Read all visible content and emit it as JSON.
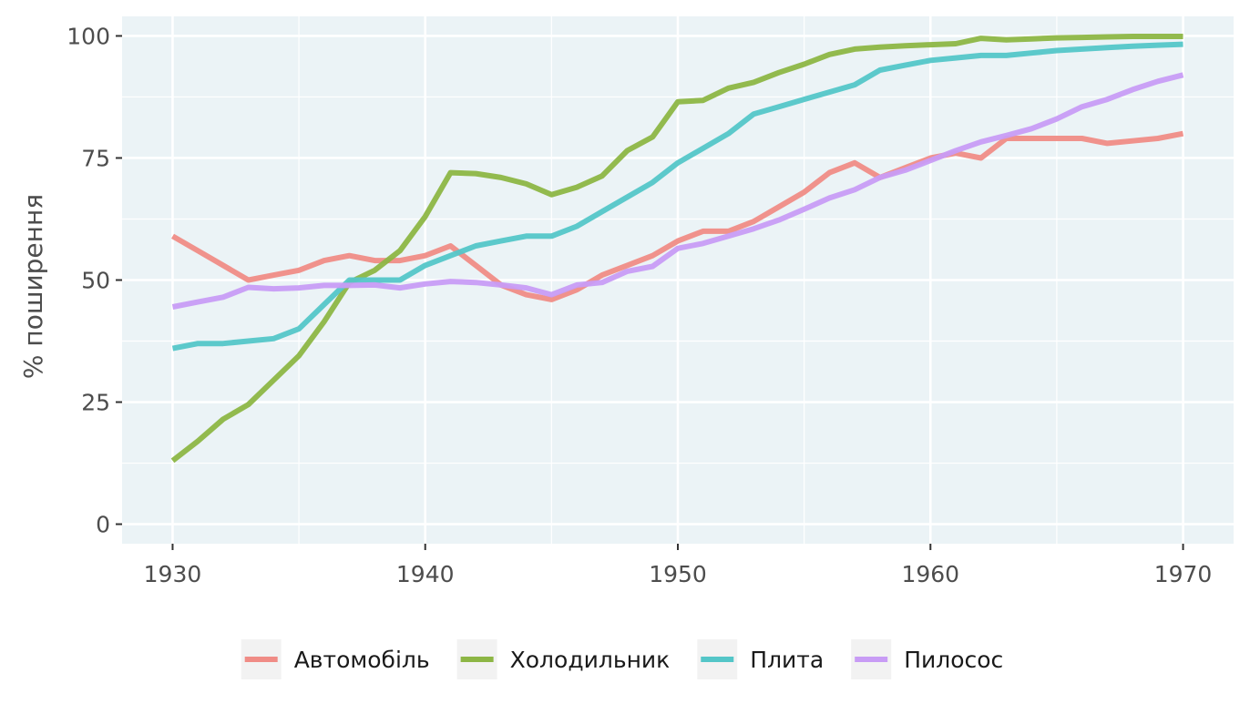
{
  "chart_data": {
    "type": "line",
    "ylabel": "% поширення",
    "xlim": [
      1928,
      1972
    ],
    "ylim": [
      -4,
      104
    ],
    "x_ticks": [
      1930,
      1940,
      1950,
      1960,
      1970
    ],
    "x_tick_labels": [
      "1930",
      "1940",
      "1950",
      "1960",
      "1970"
    ],
    "y_ticks": [
      0,
      25,
      50,
      75,
      100
    ],
    "y_tick_labels": [
      "0",
      "25",
      "50",
      "75",
      "100"
    ],
    "x_minor": [
      1935,
      1945,
      1955,
      1965
    ],
    "y_minor": [
      12.5,
      37.5,
      62.5,
      87.5
    ],
    "grid": true,
    "legend_position": "bottom",
    "colors": {
      "panel": "#EBF3F6",
      "grid": "#ffffff",
      "tick": "#333333"
    },
    "x": [
      1930,
      1931,
      1932,
      1933,
      1934,
      1935,
      1936,
      1937,
      1938,
      1939,
      1940,
      1941,
      1942,
      1943,
      1944,
      1945,
      1946,
      1947,
      1948,
      1949,
      1950,
      1951,
      1952,
      1953,
      1954,
      1955,
      1956,
      1957,
      1958,
      1959,
      1960,
      1961,
      1962,
      1963,
      1964,
      1965,
      1966,
      1967,
      1968,
      1969,
      1970
    ],
    "series": [
      {
        "name": "Автомобіль",
        "color": "#F08C86",
        "values": [
          59,
          56,
          53,
          50,
          51,
          52,
          54,
          55,
          54,
          54,
          55,
          57,
          53,
          49,
          47,
          46,
          48,
          51,
          53,
          55,
          58,
          60,
          60,
          62,
          65,
          68,
          72,
          74,
          71,
          73,
          75,
          76,
          75,
          79,
          79,
          79,
          79,
          78,
          78.5,
          79,
          80
        ]
      },
      {
        "name": "Холодильник",
        "color": "#8DB645",
        "values": [
          13,
          17,
          21.5,
          24.5,
          29.5,
          34.5,
          41.5,
          49.5,
          52,
          56,
          63,
          72,
          71.8,
          71,
          69.7,
          67.5,
          69,
          71.3,
          76.5,
          79.3,
          86.5,
          86.8,
          89.3,
          90.5,
          92.5,
          94.2,
          96.2,
          97.3,
          97.7,
          98,
          98.2,
          98.4,
          99.5,
          99.2,
          99.4,
          99.6,
          99.7,
          99.8,
          99.9,
          99.9,
          99.9
        ]
      },
      {
        "name": "Плита",
        "color": "#54C6C8",
        "values": [
          36,
          37,
          37,
          37.5,
          38,
          40,
          45,
          50,
          50,
          50,
          53,
          55,
          57,
          58,
          59,
          59,
          61,
          64,
          67,
          70,
          74,
          77,
          80,
          84,
          85.5,
          87,
          88.5,
          90,
          93,
          94,
          95,
          95.5,
          96,
          96,
          96.5,
          97,
          97.3,
          97.6,
          97.9,
          98.1,
          98.3
        ]
      },
      {
        "name": "Пилосос",
        "color": "#C89CF5",
        "values": [
          44.5,
          45.5,
          46.5,
          48.5,
          48.2,
          48.4,
          48.9,
          48.9,
          49,
          48.4,
          49.2,
          49.7,
          49.5,
          49,
          48.4,
          47,
          49,
          49.5,
          51.8,
          52.8,
          56.5,
          57.5,
          59,
          60.5,
          62.3,
          64.5,
          66.8,
          68.5,
          71,
          72.5,
          74.5,
          76.5,
          78.3,
          79.6,
          81,
          83,
          85.5,
          87,
          89,
          90.7,
          92
        ]
      }
    ]
  }
}
